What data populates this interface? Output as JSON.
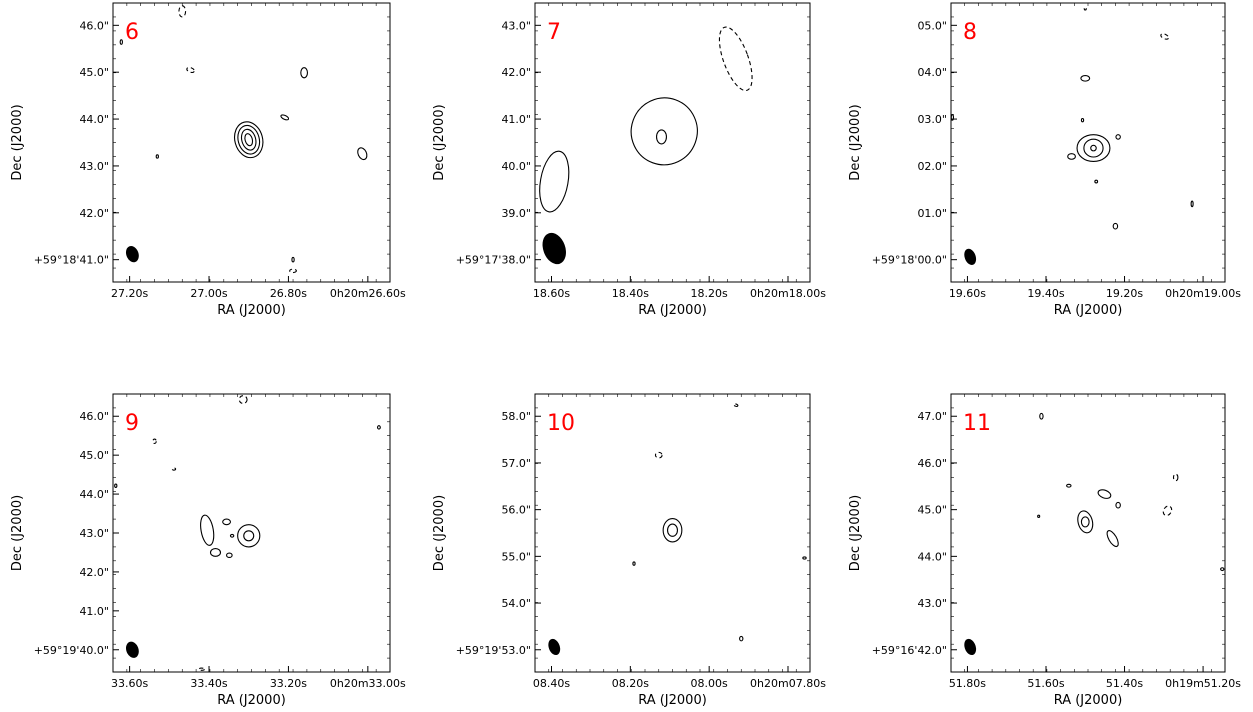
{
  "chart_data": [
    {
      "type": "contour",
      "panel_label": "6",
      "xlabel": "RA (J2000)",
      "ylabel": "Dec (J2000)",
      "x_ticks": [
        "27.20s",
        "27.00s",
        "26.80s",
        "0h20m26.60s"
      ],
      "y_ticks": [
        "+59°18'41.0\"",
        "42.0\"",
        "43.0\"",
        "44.0\"",
        "45.0\"",
        "46.0\""
      ],
      "contours": [
        {
          "style": "solid",
          "center": [
            0.49,
            0.49
          ],
          "rx": 0.05,
          "ry": 0.065,
          "angle": -15
        },
        {
          "style": "solid",
          "center": [
            0.49,
            0.49
          ],
          "rx": 0.038,
          "ry": 0.052,
          "angle": -15
        },
        {
          "style": "solid",
          "center": [
            0.49,
            0.49
          ],
          "rx": 0.025,
          "ry": 0.038,
          "angle": -15
        },
        {
          "style": "solid",
          "center": [
            0.49,
            0.49
          ],
          "rx": 0.013,
          "ry": 0.022,
          "angle": -15
        },
        {
          "style": "solid",
          "center": [
            0.62,
            0.41
          ],
          "rx": 0.015,
          "ry": 0.007,
          "angle": 25
        },
        {
          "style": "solid",
          "center": [
            0.9,
            0.54
          ],
          "rx": 0.015,
          "ry": 0.022,
          "angle": -25
        },
        {
          "style": "solid",
          "center": [
            0.69,
            0.25
          ],
          "rx": 0.012,
          "ry": 0.018,
          "angle": 0
        },
        {
          "style": "solid",
          "center": [
            0.16,
            0.55
          ],
          "rx": 0.004,
          "ry": 0.006,
          "angle": 0
        },
        {
          "style": "solid",
          "center": [
            0.03,
            0.14
          ],
          "rx": 0.004,
          "ry": 0.008,
          "angle": 0
        },
        {
          "style": "solid",
          "center": [
            0.65,
            0.92
          ],
          "rx": 0.004,
          "ry": 0.008,
          "angle": 0
        },
        {
          "style": "dashed",
          "center": [
            0.28,
            0.24
          ],
          "rx": 0.014,
          "ry": 0.008,
          "angle": 20
        },
        {
          "style": "dashed",
          "center": [
            0.65,
            0.96
          ],
          "rx": 0.012,
          "ry": 0.006,
          "angle": 0
        },
        {
          "style": "dashed",
          "center": [
            0.25,
            0.03
          ],
          "rx": 0.012,
          "ry": 0.02,
          "angle": 0
        }
      ],
      "beam": {
        "center": [
          0.07,
          0.9
        ],
        "rx": 0.022,
        "ry": 0.03,
        "angle": -20
      }
    },
    {
      "type": "contour",
      "panel_label": "7",
      "xlabel": "RA (J2000)",
      "ylabel": "Dec (J2000)",
      "x_ticks": [
        "18.60s",
        "18.40s",
        "18.20s",
        "0h20m18.00s"
      ],
      "y_ticks": [
        "+59°17'38.0\"",
        "39.0\"",
        "40.0\"",
        "41.0\"",
        "42.0\"",
        "43.0\""
      ],
      "contours": [
        {
          "style": "solid",
          "center": [
            0.47,
            0.46
          ],
          "rx": 0.12,
          "ry": 0.12,
          "angle": 20
        },
        {
          "style": "solid",
          "center": [
            0.46,
            0.48
          ],
          "rx": 0.018,
          "ry": 0.025,
          "angle": 0
        },
        {
          "style": "solid",
          "center": [
            0.07,
            0.64
          ],
          "rx": 0.05,
          "ry": 0.11,
          "angle": 10
        },
        {
          "style": "dashed",
          "center": [
            0.73,
            0.2
          ],
          "rx": 0.045,
          "ry": 0.12,
          "angle": -20
        }
      ],
      "beam": {
        "center": [
          0.07,
          0.88
        ],
        "rx": 0.04,
        "ry": 0.058,
        "angle": -20
      }
    },
    {
      "type": "contour",
      "panel_label": "8",
      "xlabel": "RA (J2000)",
      "ylabel": "Dec (J2000)",
      "x_ticks": [
        "19.60s",
        "19.40s",
        "19.20s",
        "0h20m19.00s"
      ],
      "y_ticks": [
        "+59°18'00.0\"",
        "01.0\"",
        "02.0\"",
        "03.0\"",
        "04.0\"",
        "05.0\""
      ],
      "contours": [
        {
          "style": "solid",
          "center": [
            0.52,
            0.52
          ],
          "rx": 0.06,
          "ry": 0.048,
          "angle": 0
        },
        {
          "style": "solid",
          "center": [
            0.52,
            0.52
          ],
          "rx": 0.035,
          "ry": 0.032,
          "angle": 0
        },
        {
          "style": "solid",
          "center": [
            0.52,
            0.52
          ],
          "rx": 0.01,
          "ry": 0.01,
          "angle": 0
        },
        {
          "style": "solid",
          "center": [
            0.44,
            0.55
          ],
          "rx": 0.014,
          "ry": 0.01,
          "angle": 0
        },
        {
          "style": "solid",
          "center": [
            0.61,
            0.48
          ],
          "rx": 0.008,
          "ry": 0.008,
          "angle": 0
        },
        {
          "style": "solid",
          "center": [
            0.49,
            0.27
          ],
          "rx": 0.016,
          "ry": 0.01,
          "angle": 0
        },
        {
          "style": "solid",
          "center": [
            0.6,
            0.8
          ],
          "rx": 0.008,
          "ry": 0.01,
          "angle": 0
        },
        {
          "style": "solid",
          "center": [
            0.53,
            0.64
          ],
          "rx": 0.005,
          "ry": 0.005,
          "angle": 0
        },
        {
          "style": "solid",
          "center": [
            0.48,
            0.42
          ],
          "rx": 0.004,
          "ry": 0.006,
          "angle": 0
        },
        {
          "style": "solid",
          "center": [
            0.88,
            0.72
          ],
          "rx": 0.003,
          "ry": 0.01,
          "angle": 0
        },
        {
          "style": "solid",
          "center": [
            0.005,
            0.41
          ],
          "rx": 0.004,
          "ry": 0.01,
          "angle": 0
        },
        {
          "style": "dashed",
          "center": [
            0.78,
            0.12
          ],
          "rx": 0.015,
          "ry": 0.008,
          "angle": 25
        },
        {
          "style": "dashed",
          "center": [
            0.49,
            0.02
          ],
          "rx": 0.003,
          "ry": 0.005,
          "angle": 0
        }
      ],
      "beam": {
        "center": [
          0.07,
          0.91
        ],
        "rx": 0.02,
        "ry": 0.03,
        "angle": -20
      }
    },
    {
      "type": "contour",
      "panel_label": "9",
      "xlabel": "RA (J2000)",
      "ylabel": "Dec (J2000)",
      "x_ticks": [
        "33.60s",
        "33.40s",
        "33.20s",
        "0h20m33.00s"
      ],
      "y_ticks": [
        "+59°19'40.0\"",
        "41.0\"",
        "42.0\"",
        "43.0\"",
        "44.0\"",
        "45.0\"",
        "46.0\""
      ],
      "contours": [
        {
          "style": "solid",
          "center": [
            0.49,
            0.51
          ],
          "rx": 0.04,
          "ry": 0.04,
          "angle": 0
        },
        {
          "style": "solid",
          "center": [
            0.49,
            0.51
          ],
          "rx": 0.018,
          "ry": 0.018,
          "angle": 0
        },
        {
          "style": "solid",
          "center": [
            0.34,
            0.49
          ],
          "rx": 0.022,
          "ry": 0.055,
          "angle": -10
        },
        {
          "style": "solid",
          "center": [
            0.37,
            0.57
          ],
          "rx": 0.018,
          "ry": 0.014,
          "angle": 0
        },
        {
          "style": "solid",
          "center": [
            0.41,
            0.46
          ],
          "rx": 0.014,
          "ry": 0.01,
          "angle": 0
        },
        {
          "style": "solid",
          "center": [
            0.42,
            0.58
          ],
          "rx": 0.01,
          "ry": 0.008,
          "angle": 0
        },
        {
          "style": "solid",
          "center": [
            0.43,
            0.51
          ],
          "rx": 0.006,
          "ry": 0.005,
          "angle": 0
        },
        {
          "style": "solid",
          "center": [
            0.01,
            0.33
          ],
          "rx": 0.004,
          "ry": 0.006,
          "angle": 0
        },
        {
          "style": "solid",
          "center": [
            0.96,
            0.12
          ],
          "rx": 0.005,
          "ry": 0.006,
          "angle": 0
        },
        {
          "style": "dashed",
          "center": [
            0.47,
            0.02
          ],
          "rx": 0.014,
          "ry": 0.014,
          "angle": 0
        },
        {
          "style": "dashed",
          "center": [
            0.15,
            0.17
          ],
          "rx": 0.006,
          "ry": 0.008,
          "angle": 0
        },
        {
          "style": "dashed",
          "center": [
            0.22,
            0.27
          ],
          "rx": 0.006,
          "ry": 0.004,
          "angle": 0
        },
        {
          "style": "dashed",
          "center": [
            0.32,
            0.99
          ],
          "rx": 0.01,
          "ry": 0.004,
          "angle": 0
        }
      ],
      "beam": {
        "center": [
          0.07,
          0.92
        ],
        "rx": 0.022,
        "ry": 0.03,
        "angle": -20
      }
    },
    {
      "type": "contour",
      "panel_label": "10",
      "xlabel": "RA (J2000)",
      "ylabel": "Dec (J2000)",
      "x_ticks": [
        "08.40s",
        "08.20s",
        "08.00s",
        "0h20m07.80s"
      ],
      "y_ticks": [
        "+59°19'53.0\"",
        "54.0\"",
        "55.0\"",
        "56.0\"",
        "57.0\"",
        "58.0\""
      ],
      "contours": [
        {
          "style": "solid",
          "center": [
            0.5,
            0.49
          ],
          "rx": 0.034,
          "ry": 0.042,
          "angle": 0
        },
        {
          "style": "solid",
          "center": [
            0.5,
            0.49
          ],
          "rx": 0.018,
          "ry": 0.022,
          "angle": 0
        },
        {
          "style": "solid",
          "center": [
            0.36,
            0.61
          ],
          "rx": 0.004,
          "ry": 0.006,
          "angle": 0
        },
        {
          "style": "solid",
          "center": [
            0.98,
            0.59
          ],
          "rx": 0.006,
          "ry": 0.004,
          "angle": 0
        },
        {
          "style": "solid",
          "center": [
            0.75,
            0.88
          ],
          "rx": 0.006,
          "ry": 0.008,
          "angle": 0
        },
        {
          "style": "dashed",
          "center": [
            0.45,
            0.22
          ],
          "rx": 0.012,
          "ry": 0.01,
          "angle": 0
        },
        {
          "style": "dashed",
          "center": [
            0.73,
            0.04
          ],
          "rx": 0.008,
          "ry": 0.004,
          "angle": 20
        }
      ],
      "beam": {
        "center": [
          0.07,
          0.91
        ],
        "rx": 0.02,
        "ry": 0.03,
        "angle": -20
      }
    },
    {
      "type": "contour",
      "panel_label": "11",
      "xlabel": "RA (J2000)",
      "ylabel": "Dec (J2000)",
      "x_ticks": [
        "51.80s",
        "51.60s",
        "51.40s",
        "0h19m51.20s"
      ],
      "y_ticks": [
        "+59°16'42.0\"",
        "43.0\"",
        "44.0\"",
        "45.0\"",
        "46.0\"",
        "47.0\""
      ],
      "contours": [
        {
          "style": "solid",
          "center": [
            0.49,
            0.46
          ],
          "rx": 0.026,
          "ry": 0.04,
          "angle": -15
        },
        {
          "style": "solid",
          "center": [
            0.49,
            0.46
          ],
          "rx": 0.014,
          "ry": 0.018,
          "angle": 0
        },
        {
          "style": "solid",
          "center": [
            0.59,
            0.52
          ],
          "rx": 0.014,
          "ry": 0.032,
          "angle": -30
        },
        {
          "style": "solid",
          "center": [
            0.56,
            0.36
          ],
          "rx": 0.024,
          "ry": 0.014,
          "angle": 20
        },
        {
          "style": "solid",
          "center": [
            0.61,
            0.4
          ],
          "rx": 0.008,
          "ry": 0.01,
          "angle": 0
        },
        {
          "style": "solid",
          "center": [
            0.43,
            0.33
          ],
          "rx": 0.008,
          "ry": 0.005,
          "angle": 0
        },
        {
          "style": "solid",
          "center": [
            0.33,
            0.08
          ],
          "rx": 0.006,
          "ry": 0.01,
          "angle": 0
        },
        {
          "style": "solid",
          "center": [
            0.99,
            0.63
          ],
          "rx": 0.006,
          "ry": 0.005,
          "angle": 0
        },
        {
          "style": "solid",
          "center": [
            0.32,
            0.44
          ],
          "rx": 0.003,
          "ry": 0.004,
          "angle": 0
        },
        {
          "style": "dashed",
          "center": [
            0.82,
            0.3
          ],
          "rx": 0.008,
          "ry": 0.012,
          "angle": 0
        },
        {
          "style": "dashed",
          "center": [
            0.79,
            0.42
          ],
          "rx": 0.014,
          "ry": 0.018,
          "angle": 30
        }
      ],
      "beam": {
        "center": [
          0.07,
          0.91
        ],
        "rx": 0.02,
        "ry": 0.03,
        "angle": -20
      }
    }
  ]
}
